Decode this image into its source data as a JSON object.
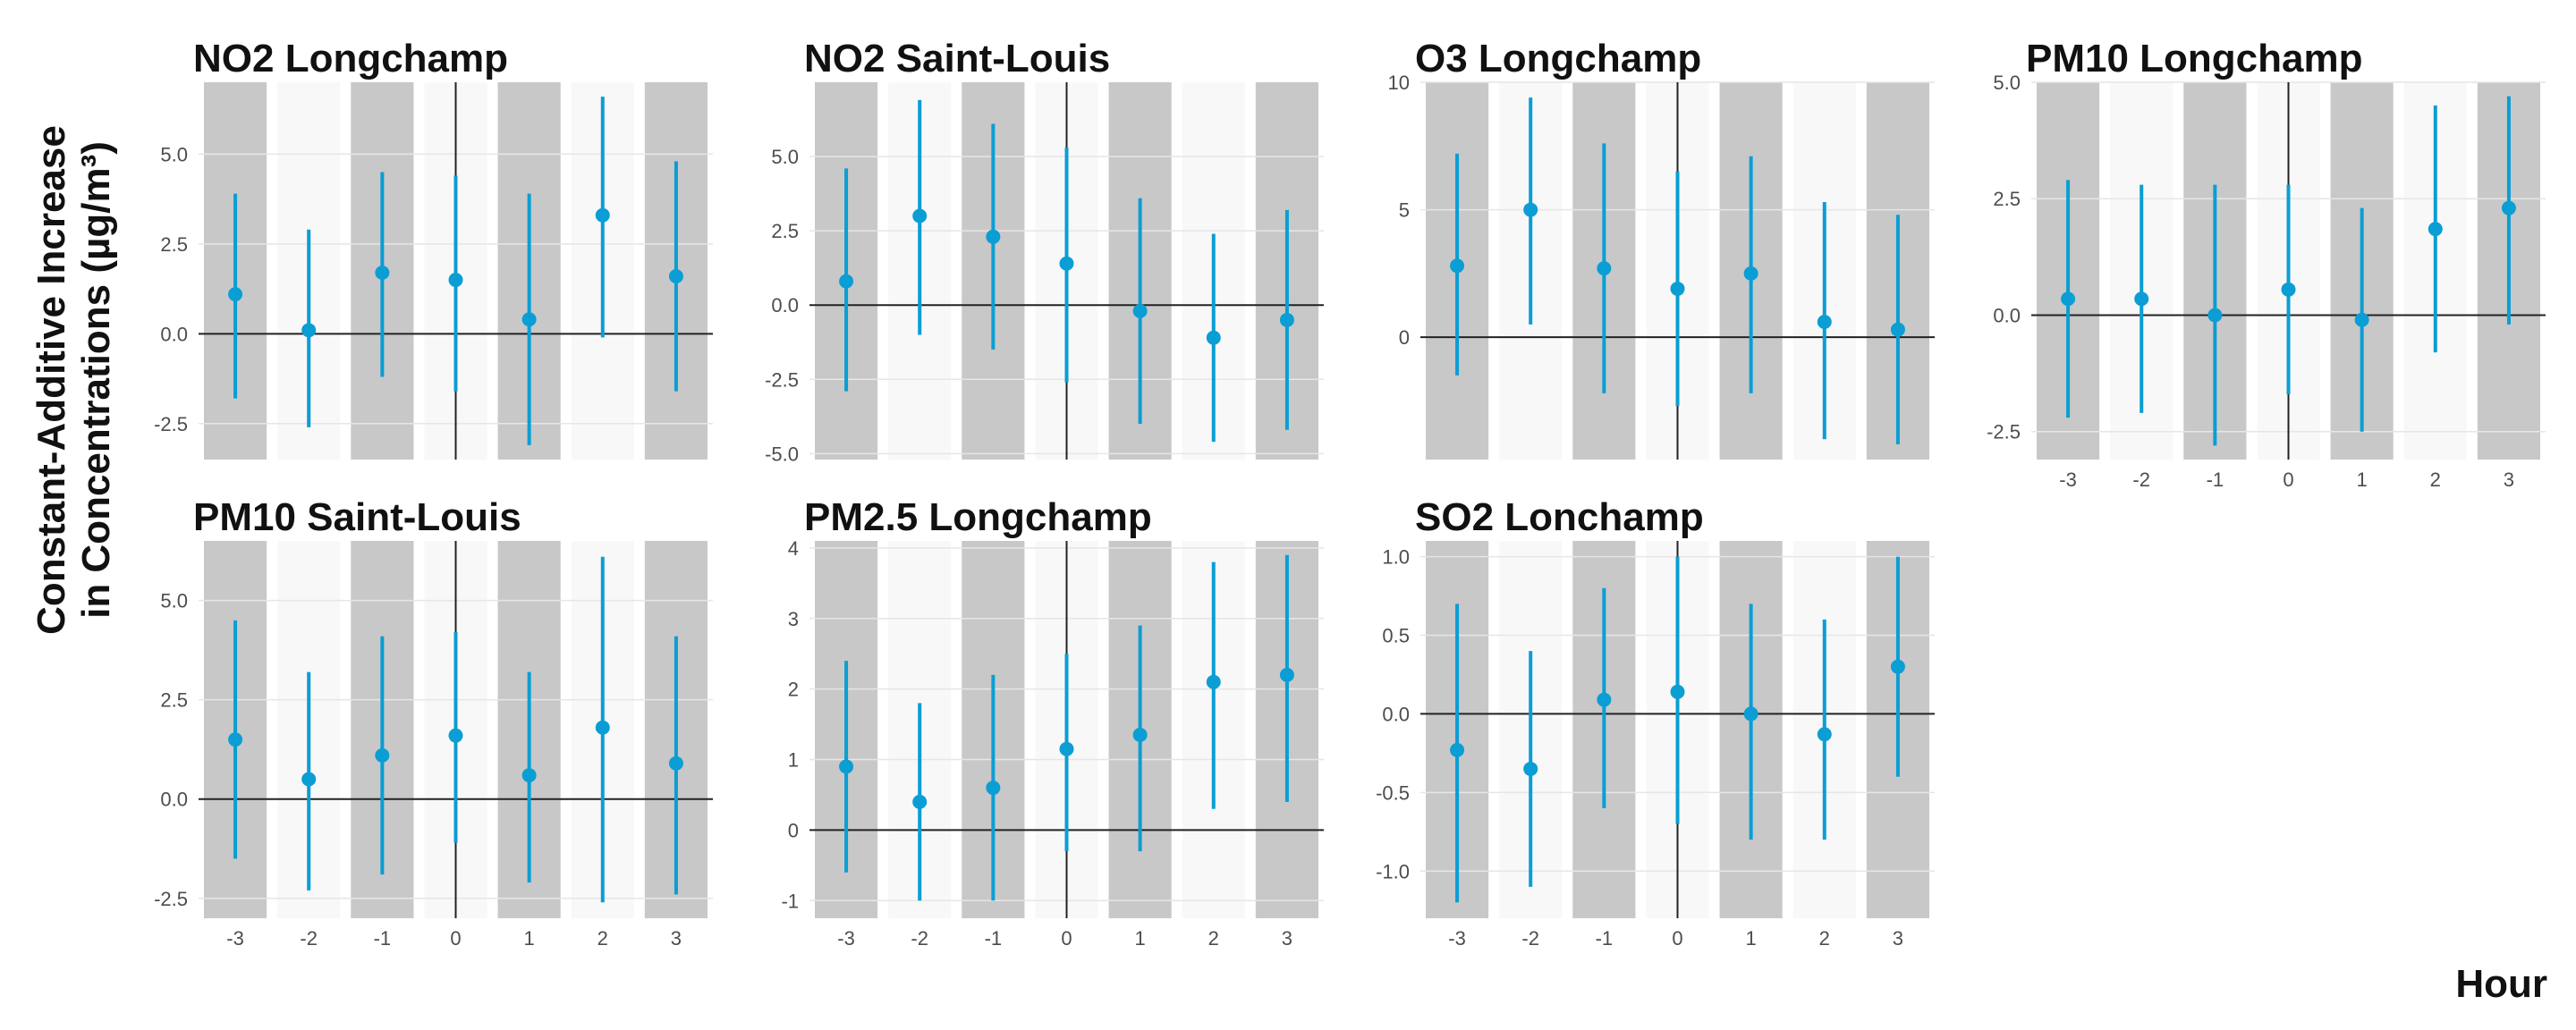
{
  "figure": {
    "ylabel_line1": "Constant-Additive Increase",
    "ylabel_line2": "in Concentrations (µg/m³)",
    "xlabel": "Hour",
    "colors": {
      "point": "#0a9ed4",
      "shade_dark": "#c8c8c8",
      "shade_light": "#f8f8f8",
      "grid": "#e6e6e6",
      "zero_line": "#222222"
    }
  },
  "chart_data": [
    {
      "type": "scatter",
      "title": "NO2 Longchamp",
      "x": [
        -3,
        -2,
        -1,
        0,
        1,
        2,
        3
      ],
      "estimate": [
        1.1,
        0.1,
        1.7,
        1.5,
        0.4,
        3.3,
        1.6
      ],
      "lower": [
        -1.8,
        -2.6,
        -1.2,
        -1.6,
        -3.1,
        -0.1,
        -1.6
      ],
      "upper": [
        3.9,
        2.9,
        4.5,
        4.4,
        3.9,
        6.6,
        4.8
      ],
      "ylim": [
        -3.5,
        7.0
      ],
      "yticks": [
        "-2.5",
        "0.0",
        "2.5",
        "5.0"
      ],
      "xticks": []
    },
    {
      "type": "scatter",
      "title": "NO2 Saint-Louis",
      "x": [
        -3,
        -2,
        -1,
        0,
        1,
        2,
        3
      ],
      "estimate": [
        0.8,
        3.0,
        2.3,
        1.4,
        -0.2,
        -1.1,
        -0.5
      ],
      "lower": [
        -2.9,
        -1.0,
        -1.5,
        -2.6,
        -4.0,
        -4.6,
        -4.2
      ],
      "upper": [
        4.6,
        6.9,
        6.1,
        5.3,
        3.6,
        2.4,
        3.2
      ],
      "ylim": [
        -5.2,
        7.5
      ],
      "yticks": [
        "-5.0",
        "-2.5",
        "0.0",
        "2.5",
        "5.0"
      ],
      "xticks": []
    },
    {
      "type": "scatter",
      "title": "O3 Longchamp",
      "x": [
        -3,
        -2,
        -1,
        0,
        1,
        2,
        3
      ],
      "estimate": [
        2.8,
        5.0,
        2.7,
        1.9,
        2.5,
        0.6,
        0.3
      ],
      "lower": [
        -1.5,
        0.5,
        -2.2,
        -2.7,
        -2.2,
        -4.0,
        -4.2
      ],
      "upper": [
        7.2,
        9.4,
        7.6,
        6.5,
        7.1,
        5.3,
        4.8
      ],
      "ylim": [
        -4.8,
        10.0
      ],
      "yticks": [
        "0",
        "5",
        "10"
      ],
      "xticks": []
    },
    {
      "type": "scatter",
      "title": "PM10 Longchamp",
      "x": [
        -3,
        -2,
        -1,
        0,
        1,
        2,
        3
      ],
      "estimate": [
        0.35,
        0.35,
        0.0,
        0.55,
        -0.1,
        1.85,
        2.3
      ],
      "lower": [
        -2.2,
        -2.1,
        -2.8,
        -1.7,
        -2.5,
        -0.8,
        -0.2
      ],
      "upper": [
        2.9,
        2.8,
        2.8,
        2.8,
        2.3,
        4.5,
        4.7
      ],
      "ylim": [
        -3.1,
        5.0
      ],
      "yticks": [
        "-2.5",
        "0.0",
        "2.5",
        "5.0"
      ],
      "xticks": [
        "-3",
        "-2",
        "-1",
        "0",
        "1",
        "2",
        "3"
      ]
    },
    {
      "type": "scatter",
      "title": "PM10 Saint-Louis",
      "x": [
        -3,
        -2,
        -1,
        0,
        1,
        2,
        3
      ],
      "estimate": [
        1.5,
        0.5,
        1.1,
        1.6,
        0.6,
        1.8,
        0.9
      ],
      "lower": [
        -1.5,
        -2.3,
        -1.9,
        -1.1,
        -2.1,
        -2.6,
        -2.4
      ],
      "upper": [
        4.5,
        3.2,
        4.1,
        4.2,
        3.2,
        6.1,
        4.1
      ],
      "ylim": [
        -3.0,
        6.5
      ],
      "yticks": [
        "-2.5",
        "0.0",
        "2.5",
        "5.0"
      ],
      "xticks": [
        "-3",
        "-2",
        "-1",
        "0",
        "1",
        "2",
        "3"
      ]
    },
    {
      "type": "scatter",
      "title": "PM2.5 Longchamp",
      "x": [
        -3,
        -2,
        -1,
        0,
        1,
        2,
        3
      ],
      "estimate": [
        0.9,
        0.4,
        0.6,
        1.15,
        1.35,
        2.1,
        2.2
      ],
      "lower": [
        -0.6,
        -1.0,
        -1.0,
        -0.3,
        -0.3,
        0.3,
        0.4
      ],
      "upper": [
        2.4,
        1.8,
        2.2,
        2.5,
        2.9,
        3.8,
        3.9
      ],
      "ylim": [
        -1.25,
        4.1
      ],
      "yticks": [
        "-1",
        "0",
        "1",
        "2",
        "3",
        "4"
      ],
      "xticks": [
        "-3",
        "-2",
        "-1",
        "0",
        "1",
        "2",
        "3"
      ]
    },
    {
      "type": "scatter",
      "title": "SO2 Lonchamp",
      "x": [
        -3,
        -2,
        -1,
        0,
        1,
        2,
        3
      ],
      "estimate": [
        -0.23,
        -0.35,
        0.09,
        0.14,
        0.0,
        -0.13,
        0.3
      ],
      "lower": [
        -1.2,
        -1.1,
        -0.6,
        -0.7,
        -0.8,
        -0.8,
        -0.4
      ],
      "upper": [
        0.7,
        0.4,
        0.8,
        1.0,
        0.7,
        0.6,
        1.0
      ],
      "ylim": [
        -1.3,
        1.1
      ],
      "yticks": [
        "-1.0",
        "-0.5",
        "0.0",
        "0.5",
        "1.0"
      ],
      "xticks": [
        "-3",
        "-2",
        "-1",
        "0",
        "1",
        "2",
        "3"
      ]
    }
  ]
}
